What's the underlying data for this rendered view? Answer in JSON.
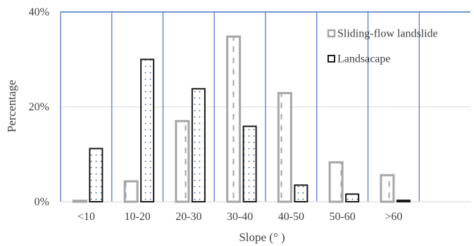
{
  "chart_data": {
    "type": "bar",
    "xlabel": "Slope (° )",
    "ylabel": "Percentage",
    "categories": [
      "<10",
      "10-20",
      "20-30",
      "30-40",
      "40-50",
      "50-60",
      ">60",
      ""
    ],
    "y_ticks": [
      "0%",
      "20%",
      "40%"
    ],
    "ylim": [
      0,
      40
    ],
    "grid": "horizontal",
    "legend_position": "top-right",
    "series": [
      {
        "name": "Sliding-flow landslide",
        "values": [
          0.2,
          4.3,
          17.0,
          34.8,
          22.9,
          8.3,
          5.6,
          0
        ],
        "stroke": "#a6a6a6",
        "pattern": "dashed-vertical"
      },
      {
        "name": "Landsacape",
        "values": [
          11.2,
          30.0,
          23.8,
          15.9,
          3.5,
          1.6,
          0.3,
          0
        ],
        "stroke": "#1a1a1a",
        "pattern": "dots"
      }
    ],
    "colors": {
      "frame": "#4472c4",
      "gridline": "#d9d9d9",
      "text": "#404040",
      "dots": "#2f5597"
    }
  }
}
